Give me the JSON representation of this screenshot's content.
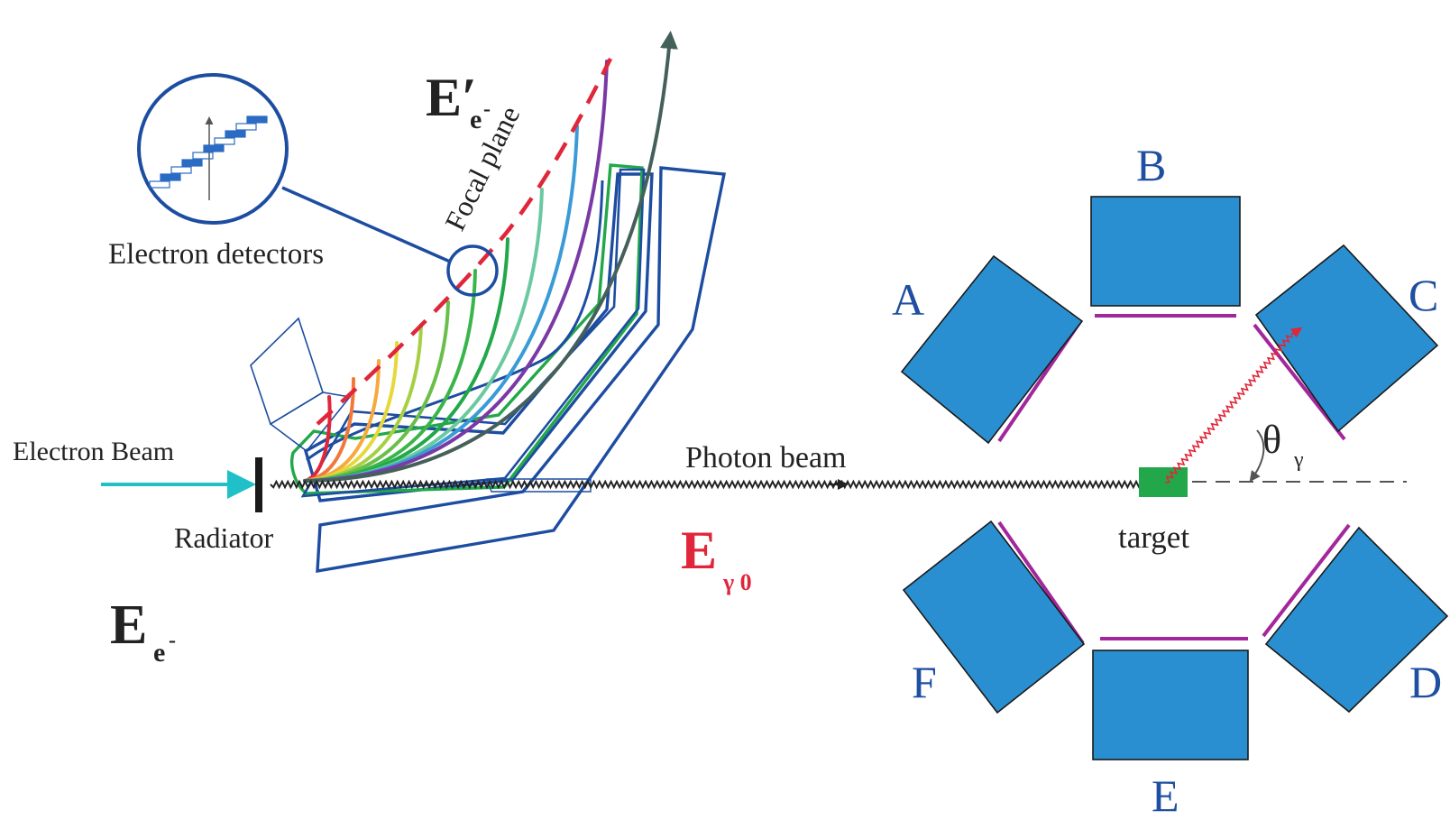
{
  "labels": {
    "electron_beam": "Electron Beam",
    "radiator": "Radiator",
    "photon_beam": "Photon beam",
    "focal_plane": "Focal plane",
    "electron_detectors": "Electron detectors",
    "target": "target",
    "e_prime": {
      "main": "E′",
      "sub": "e",
      "sup": "-"
    },
    "e_minus": {
      "main": "E",
      "sub": "e",
      "sup": "-"
    },
    "e_gamma0": {
      "main": "E",
      "sub": "γ 0"
    },
    "theta": {
      "main": "θ",
      "sub": "γ"
    }
  },
  "detectors": [
    {
      "id": "A",
      "label": "A"
    },
    {
      "id": "B",
      "label": "B"
    },
    {
      "id": "C",
      "label": "C"
    },
    {
      "id": "D",
      "label": "D"
    },
    {
      "id": "E",
      "label": "E"
    },
    {
      "id": "F",
      "label": "F"
    }
  ],
  "colors": {
    "magnet_outline": "#1d4da1",
    "magnet_inner": "#22a84a",
    "focal_plane": "#e0263a",
    "electron_beam": "#20c0c8",
    "detector_fill": "#2a8fd0",
    "shield": "#a3279c",
    "target": "#22a84a",
    "gamma_ray": "#e0263a",
    "labels_red": "#e0263a",
    "labels_blue": "#1f4fa0",
    "trajectory_colors": [
      "#e0263a",
      "#f0793a",
      "#f6a93c",
      "#e6d83a",
      "#a7cf44",
      "#6abf4b",
      "#3ab54a",
      "#22a84a",
      "#6bc9a0",
      "#3a9bd6",
      "#7a3aa5",
      "#45605a"
    ]
  },
  "icons": {
    "beam_arrow": "arrow-right-icon",
    "outgoing_arrow": "arrow-up-icon"
  }
}
